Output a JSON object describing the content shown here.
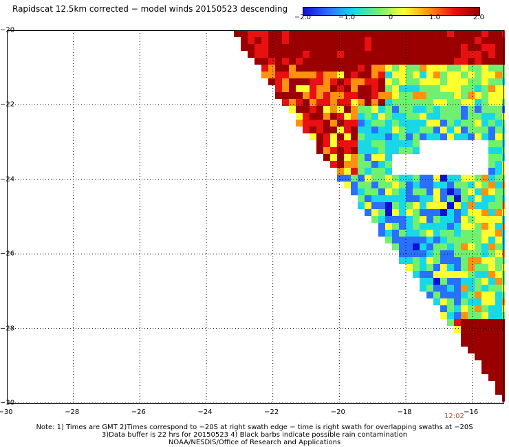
{
  "title": "Rapidscat 12.5km corrected − model winds 20150523 descending",
  "colorbar": {
    "labels": [
      "−2.0",
      "−1.0",
      "0",
      "1.0",
      "2.0"
    ],
    "values": [
      -2.0,
      -1.0,
      0,
      1.0,
      2.0
    ],
    "stops": [
      "#1010d0",
      "#2a70ff",
      "#18d8e8",
      "#70f070",
      "#ffff30",
      "#ff9010",
      "#e81010",
      "#9a0000"
    ]
  },
  "map": {
    "lon_range": [
      -30,
      -15
    ],
    "lat_range": [
      -30,
      -20
    ],
    "x_ticks": [
      "−30",
      "−28",
      "−26",
      "−24",
      "−22",
      "−20",
      "−18",
      "−16"
    ],
    "y_ticks": [
      "−20",
      "−22",
      "−24",
      "−26",
      "−28",
      "−30"
    ],
    "x_tick_values": [
      -30,
      -28,
      -26,
      -24,
      -22,
      -20,
      -18,
      -16
    ],
    "y_tick_values": [
      -20,
      -22,
      -24,
      -26,
      -28,
      -30
    ],
    "grid": "dotted",
    "swath_time": "12:02"
  },
  "notes": {
    "line1": "Note: 1) Times are GMT 2)Times correspond to −20S at right swath edge − time is right swath for overlapping swaths at −20S",
    "line2": "3)Data buffer is 22 hrs for 20150523 4) Black barbs indicate possible rain contamination",
    "line3": "NOAA/NESDIS/Office of Research and Applications"
  }
}
